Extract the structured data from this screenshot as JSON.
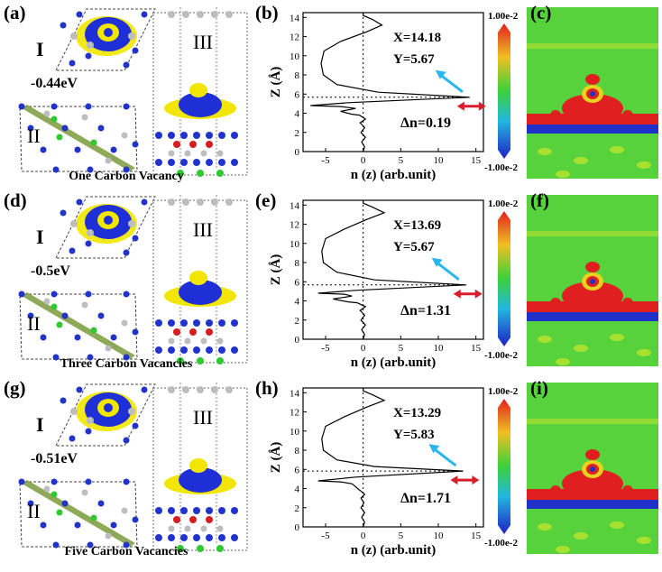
{
  "rows": [
    {
      "labels": {
        "struct": "(a)",
        "plot": "(b)",
        "map": "(c)"
      },
      "energy": "-0.44eV",
      "caption": "One Carbon Vacancy",
      "roman": {
        "top": "I",
        "bottom": "II",
        "side": "III"
      },
      "annot": {
        "x": "X=14.18",
        "y": "Y=5.67",
        "dn": "Δn=0.19"
      },
      "colorbar": {
        "max": "1.00e-2",
        "min": "-1.00e-2"
      }
    },
    {
      "labels": {
        "struct": "(d)",
        "plot": "(e)",
        "map": "(f)"
      },
      "energy": "-0.5eV",
      "caption": "Three Carbon Vacancies",
      "roman": {
        "top": "I",
        "bottom": "II",
        "side": "III"
      },
      "annot": {
        "x": "X=13.69",
        "y": "Y=5.67",
        "dn": "Δn=1.31"
      },
      "colorbar": {
        "max": "1.00e-2",
        "min": "-1.00e-2"
      }
    },
    {
      "labels": {
        "struct": "(g)",
        "plot": "(h)",
        "map": "(i)"
      },
      "energy": "-0.51eV",
      "caption": "Five Carbon Vacancies",
      "roman": {
        "top": "I",
        "bottom": "II",
        "side": "III"
      },
      "annot": {
        "x": "X=13.29",
        "y": "Y=5.83",
        "dn": "Δn=1.71"
      },
      "colorbar": {
        "max": "1.00e-2",
        "min": "-1.00e-2"
      }
    }
  ],
  "colors": {
    "charge_blue": "#1f2fd6",
    "charge_yellow": "#f2e600",
    "arrow_blue": "#29b6f0",
    "arrow_red": "#d81e2a",
    "atom_blue": "#2233cc",
    "atom_grey": "#bdbdbd",
    "atom_green": "#2fc92f",
    "atom_red": "#d61e1e",
    "map_green": "#58d23c"
  },
  "chart_data": [
    {
      "type": "line",
      "xlabel": "n (z) (arb.unit)",
      "ylabel": "Z (Å)",
      "xlim": [
        -8,
        16
      ],
      "ylim": [
        0,
        14.5
      ],
      "xticks": [
        -5,
        0,
        5,
        10,
        15
      ],
      "yticks": [
        0,
        2,
        4,
        6,
        8,
        10,
        12,
        14
      ],
      "peak": {
        "x": 14.18,
        "y": 5.67
      },
      "series": [
        {
          "x": [
            0,
            0.2,
            -0.2,
            0.3,
            -0.3,
            0.2,
            -0.4,
            0.3,
            -0.5,
            -1.5,
            -3,
            -1,
            -3,
            -7,
            -2,
            14.18,
            2,
            -3.5,
            -5.3,
            -5.6,
            -5.2,
            -3,
            0.5,
            2.5,
            1.2,
            0,
            0
          ],
          "y": [
            0,
            0.5,
            1,
            1.5,
            2,
            2.5,
            3,
            3.4,
            3.8,
            3.9,
            4.2,
            4.5,
            4.7,
            4.8,
            5.1,
            5.67,
            6.2,
            7,
            8,
            9.2,
            10.5,
            11.5,
            12.5,
            13.2,
            13.8,
            14.2,
            14.5
          ]
        }
      ]
    },
    {
      "type": "line",
      "xlabel": "n (z) (arb.unit)",
      "ylabel": "Z (Å)",
      "xlim": [
        -8,
        16
      ],
      "ylim": [
        0,
        14.5
      ],
      "xticks": [
        -5,
        0,
        5,
        10,
        15
      ],
      "yticks": [
        0,
        2,
        4,
        6,
        8,
        10,
        12,
        14
      ],
      "peak": {
        "x": 13.69,
        "y": 5.67
      },
      "series": [
        {
          "x": [
            0,
            0.2,
            -0.2,
            0.3,
            -0.3,
            0.2,
            -0.4,
            0.3,
            -0.8,
            -2,
            -4,
            -1.5,
            -2.5,
            -6,
            -1,
            13.69,
            1.5,
            -3.5,
            -5.3,
            -5.5,
            -5,
            -2.5,
            0.5,
            2.8,
            1.2,
            0,
            0
          ],
          "y": [
            0,
            0.5,
            1,
            1.5,
            2,
            2.5,
            3,
            3.4,
            3.8,
            3.9,
            4.2,
            4.5,
            4.7,
            4.8,
            5.1,
            5.67,
            6.2,
            7,
            8,
            9.2,
            10.5,
            11.5,
            12.5,
            13.2,
            13.8,
            14.2,
            14.5
          ]
        }
      ]
    },
    {
      "type": "line",
      "xlabel": "n (z) (arb.unit)",
      "ylabel": "Z (Å)",
      "xlim": [
        -8,
        16
      ],
      "ylim": [
        0,
        14.5
      ],
      "xticks": [
        -5,
        0,
        5,
        10,
        15
      ],
      "yticks": [
        0,
        2,
        4,
        6,
        8,
        10,
        12,
        14
      ],
      "peak": {
        "x": 13.29,
        "y": 5.83
      },
      "series": [
        {
          "x": [
            0,
            0.2,
            -0.2,
            0.2,
            -0.3,
            0.1,
            -0.3,
            0.2,
            -0.4,
            -0.6,
            -1,
            -1.5,
            -3,
            -6,
            -1,
            13.29,
            1.5,
            -3.5,
            -5.3,
            -5.5,
            -5,
            -2.5,
            0.5,
            2.8,
            1.2,
            0,
            0
          ],
          "y": [
            0,
            0.5,
            1,
            1.5,
            2,
            2.5,
            3,
            3.4,
            3.8,
            3.9,
            4.2,
            4.5,
            4.7,
            4.8,
            5.2,
            5.83,
            6.3,
            7,
            8,
            9.2,
            10.5,
            11.5,
            12.5,
            13.2,
            13.8,
            14.2,
            14.5
          ]
        }
      ]
    }
  ]
}
